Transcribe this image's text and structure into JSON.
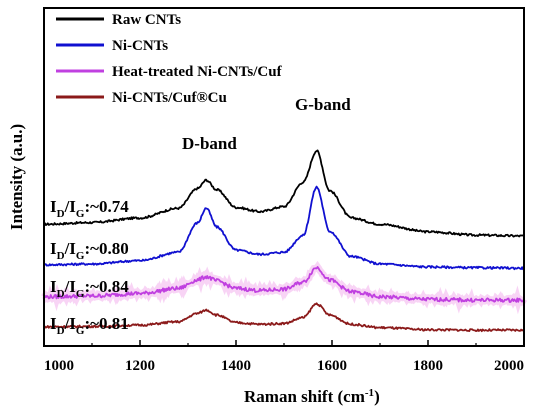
{
  "chart_data": {
    "type": "line",
    "xlabel": "Raman shift (cm",
    "xlabel_sup": "-1",
    "xlabel_close": ")",
    "ylabel": "Intensity (a.u.)",
    "xlim": [
      1000,
      2000
    ],
    "x_ticks": [
      1000,
      1200,
      1400,
      1600,
      1800,
      2000
    ],
    "y_tick_labels": "none",
    "legend_position": "top-left",
    "annotations": {
      "d_band": "D-band",
      "g_band": "G-band"
    },
    "series": [
      {
        "name": "Raw CNTs",
        "color": "#000000",
        "ratio_value": ":~0.74",
        "points": [
          [
            1000,
            0.4
          ],
          [
            1100,
            0.44
          ],
          [
            1200,
            0.55
          ],
          [
            1280,
            0.78
          ],
          [
            1320,
            1.25
          ],
          [
            1338,
            1.45
          ],
          [
            1360,
            1.22
          ],
          [
            1400,
            0.8
          ],
          [
            1450,
            0.7
          ],
          [
            1500,
            0.82
          ],
          [
            1540,
            1.4
          ],
          [
            1568,
            2.15
          ],
          [
            1595,
            1.2
          ],
          [
            1640,
            0.55
          ],
          [
            1700,
            0.4
          ],
          [
            1800,
            0.22
          ],
          [
            1900,
            0.14
          ],
          [
            2000,
            0.12
          ]
        ]
      },
      {
        "name": "Ni-CNTs",
        "color": "#1010d0",
        "ratio_value": ":~0.80",
        "points": [
          [
            1000,
            0.1
          ],
          [
            1100,
            0.12
          ],
          [
            1200,
            0.2
          ],
          [
            1280,
            0.4
          ],
          [
            1320,
            1.1
          ],
          [
            1338,
            1.45
          ],
          [
            1360,
            1.0
          ],
          [
            1400,
            0.45
          ],
          [
            1450,
            0.35
          ],
          [
            1500,
            0.4
          ],
          [
            1540,
            0.8
          ],
          [
            1568,
            1.95
          ],
          [
            1595,
            0.9
          ],
          [
            1640,
            0.3
          ],
          [
            1700,
            0.12
          ],
          [
            1800,
            0.05
          ],
          [
            1900,
            0.03
          ],
          [
            2000,
            0.02
          ]
        ]
      },
      {
        "name": "Heat-treated Ni-CNTs/Cuf",
        "color": "#c040e0",
        "ratio_value": ":~0.84",
        "points": [
          [
            1000,
            0.1
          ],
          [
            1100,
            0.12
          ],
          [
            1200,
            0.18
          ],
          [
            1280,
            0.3
          ],
          [
            1320,
            0.5
          ],
          [
            1338,
            0.58
          ],
          [
            1360,
            0.48
          ],
          [
            1400,
            0.3
          ],
          [
            1450,
            0.25
          ],
          [
            1500,
            0.28
          ],
          [
            1540,
            0.45
          ],
          [
            1568,
            0.8
          ],
          [
            1595,
            0.5
          ],
          [
            1640,
            0.22
          ],
          [
            1700,
            0.1
          ],
          [
            1800,
            0.04
          ],
          [
            1900,
            0.02
          ],
          [
            2000,
            0.02
          ]
        ]
      },
      {
        "name": "Ni-CNTs/Cuf®Cu",
        "color": "#8b1a1a",
        "ratio_value": ":~0.81",
        "points": [
          [
            1000,
            0.1
          ],
          [
            1100,
            0.11
          ],
          [
            1200,
            0.14
          ],
          [
            1280,
            0.22
          ],
          [
            1320,
            0.42
          ],
          [
            1338,
            0.5
          ],
          [
            1360,
            0.38
          ],
          [
            1400,
            0.2
          ],
          [
            1450,
            0.16
          ],
          [
            1500,
            0.18
          ],
          [
            1540,
            0.32
          ],
          [
            1568,
            0.65
          ],
          [
            1595,
            0.38
          ],
          [
            1640,
            0.16
          ],
          [
            1700,
            0.08
          ],
          [
            1800,
            0.03
          ],
          [
            1900,
            0.02
          ],
          [
            2000,
            0.02
          ]
        ]
      }
    ]
  }
}
